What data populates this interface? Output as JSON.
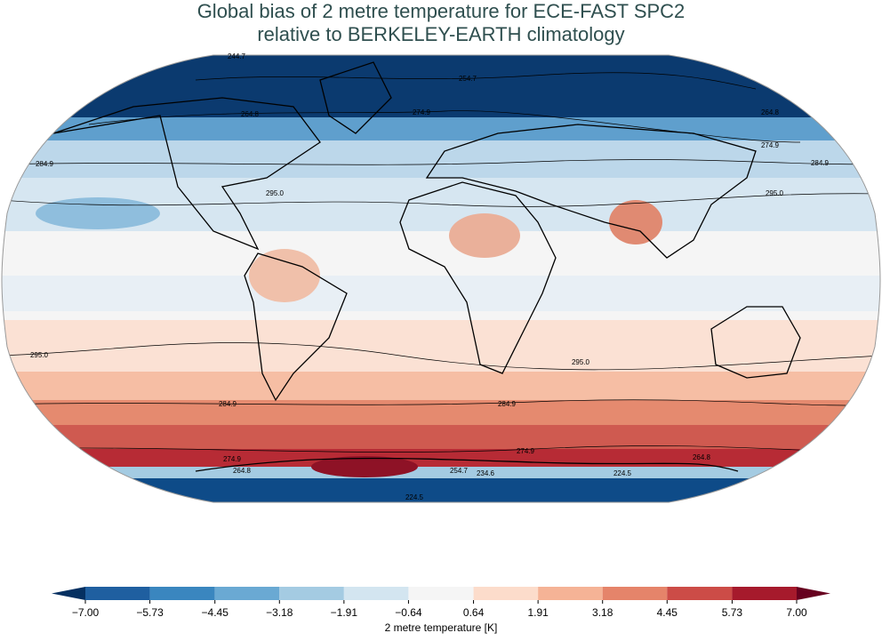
{
  "title": [
    "Global bias of 2 metre temperature for ECE-FAST SPC2",
    "relative to BERKELEY-EARTH climatology"
  ],
  "map": {
    "contour_labels": [
      "244.7",
      "254.7",
      "274.9",
      "264.8",
      "264.8",
      "274.9",
      "284.9",
      "284.9",
      "295.0",
      "295.0",
      "295.0",
      "295.0",
      "284.9",
      "284.9",
      "274.9",
      "274.9",
      "264.8",
      "264.8",
      "254.7",
      "234.6",
      "224.5",
      "224.5"
    ]
  },
  "colorbar": {
    "label": "2 metre temperature [K]",
    "ticks": [
      {
        "value": -7,
        "label": "−7.00"
      },
      {
        "value": -5.73,
        "label": "−5.73"
      },
      {
        "value": -4.45,
        "label": "−4.45"
      },
      {
        "value": -3.18,
        "label": "−3.18"
      },
      {
        "value": -1.91,
        "label": "−1.91"
      },
      {
        "value": -0.64,
        "label": "−0.64"
      },
      0.64,
      1.91,
      3.18,
      4.45,
      5.73,
      {
        "value": 7,
        "label": "7.00"
      }
    ],
    "colors": [
      "#1f5fa0",
      "#3a86bf",
      "#6aa9d3",
      "#a4cbe2",
      "#d3e5f0",
      "#f5f5f5",
      "#fcdccb",
      "#f5b396",
      "#e5846a",
      "#cc4c47",
      "#a61a2c"
    ],
    "extend_colors": [
      "#053061",
      "#67001f"
    ]
  }
}
